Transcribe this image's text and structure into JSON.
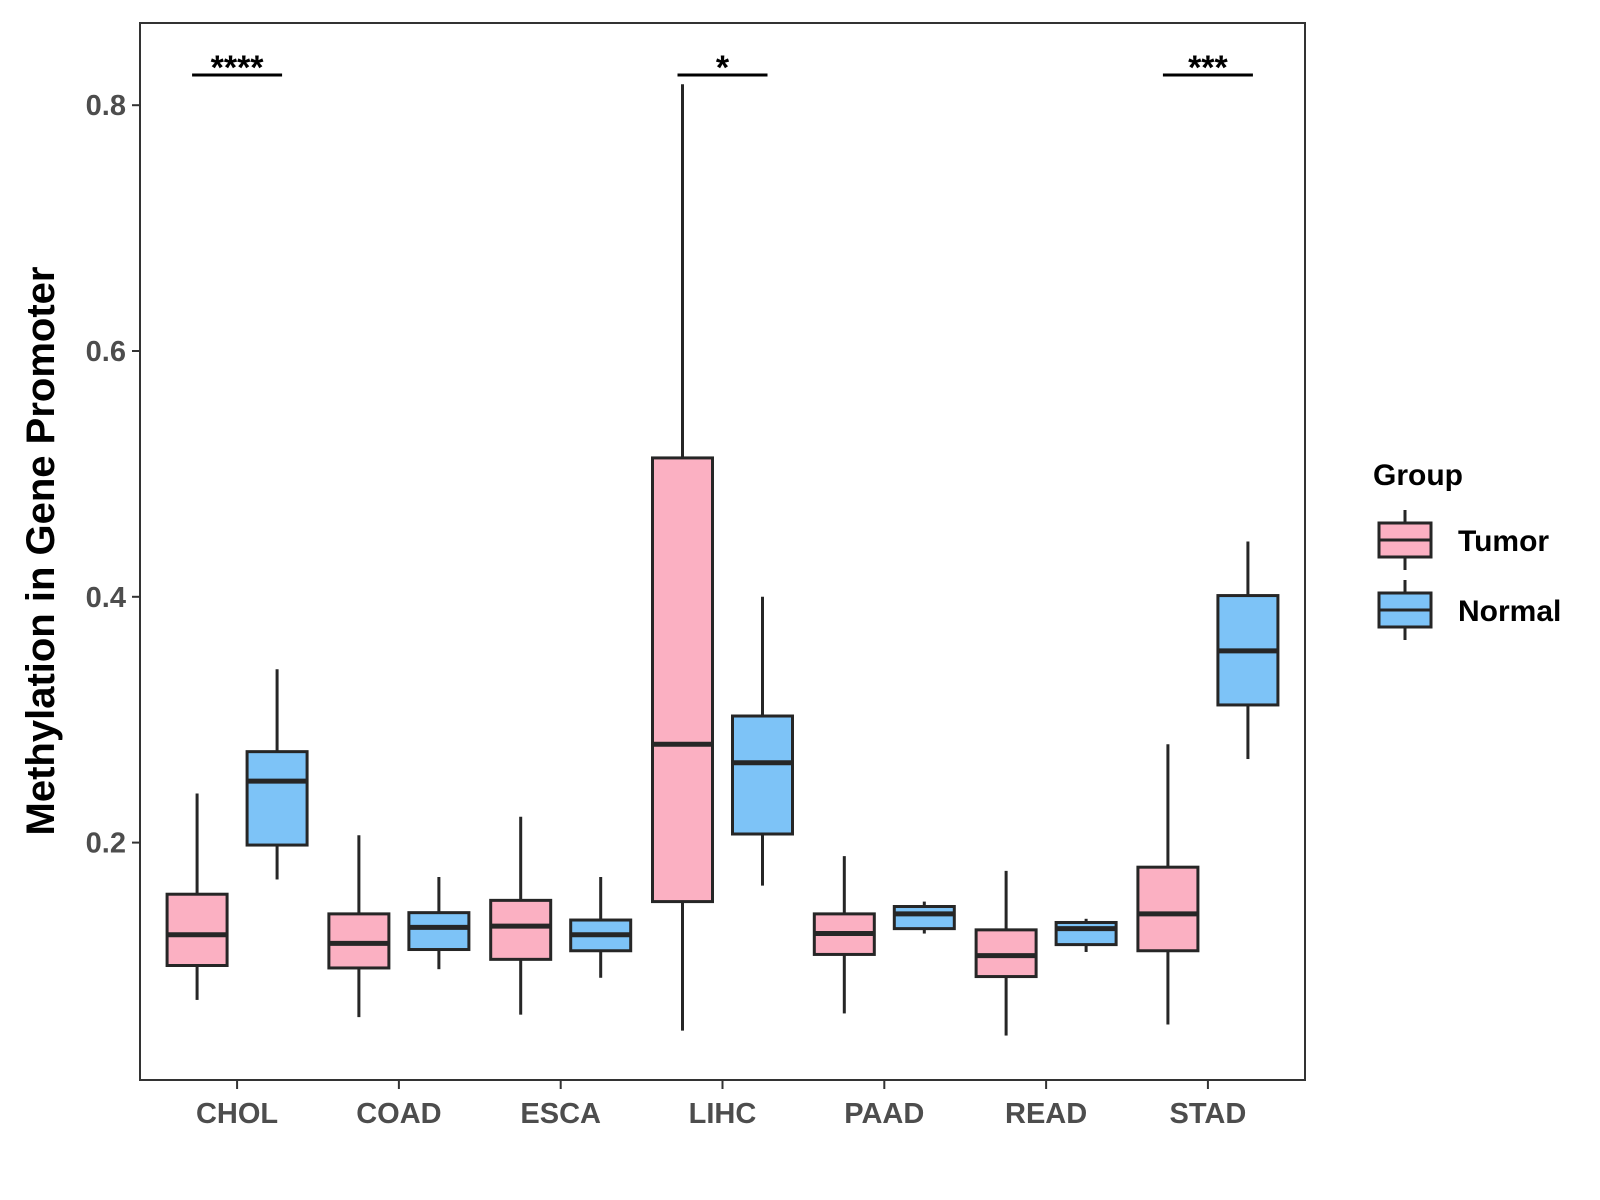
{
  "chart_data": {
    "type": "box",
    "title": "",
    "xlabel": "",
    "ylabel": "Methylation in Gene Promoter",
    "ylim": [
      0.0,
      0.86
    ],
    "yticks": [
      0.2,
      0.4,
      0.6,
      0.8
    ],
    "ytick_labels": [
      "0.2",
      "0.4",
      "0.6",
      "0.8"
    ],
    "categories": [
      "CHOL",
      "COAD",
      "ESCA",
      "LIHC",
      "PAAD",
      "READ",
      "STAD"
    ],
    "legend": {
      "title": "Group",
      "position": "right",
      "entries": [
        "Tumor",
        "Normal"
      ]
    },
    "series": [
      {
        "name": "Tumor",
        "color": "#FBB0C2",
        "boxes": [
          {
            "min": 0.072,
            "q1": 0.1,
            "median": 0.125,
            "q3": 0.158,
            "max": 0.24
          },
          {
            "min": 0.058,
            "q1": 0.098,
            "median": 0.118,
            "q3": 0.142,
            "max": 0.206
          },
          {
            "min": 0.06,
            "q1": 0.105,
            "median": 0.132,
            "q3": 0.153,
            "max": 0.221
          },
          {
            "min": 0.047,
            "q1": 0.152,
            "median": 0.28,
            "q3": 0.513,
            "max": 0.817
          },
          {
            "min": 0.061,
            "q1": 0.109,
            "median": 0.126,
            "q3": 0.142,
            "max": 0.189
          },
          {
            "min": 0.043,
            "q1": 0.091,
            "median": 0.108,
            "q3": 0.129,
            "max": 0.177
          },
          {
            "min": 0.052,
            "q1": 0.112,
            "median": 0.142,
            "q3": 0.18,
            "max": 0.28
          }
        ]
      },
      {
        "name": "Normal",
        "color": "#7DC3F7",
        "boxes": [
          {
            "min": 0.17,
            "q1": 0.198,
            "median": 0.25,
            "q3": 0.274,
            "max": 0.341
          },
          {
            "min": 0.097,
            "q1": 0.113,
            "median": 0.131,
            "q3": 0.143,
            "max": 0.172
          },
          {
            "min": 0.09,
            "q1": 0.112,
            "median": 0.125,
            "q3": 0.137,
            "max": 0.172
          },
          {
            "min": 0.165,
            "q1": 0.207,
            "median": 0.265,
            "q3": 0.303,
            "max": 0.4
          },
          {
            "min": 0.126,
            "q1": 0.13,
            "median": 0.142,
            "q3": 0.148,
            "max": 0.152
          },
          {
            "min": 0.111,
            "q1": 0.117,
            "median": 0.13,
            "q3": 0.135,
            "max": 0.138
          },
          {
            "min": 0.268,
            "q1": 0.312,
            "median": 0.356,
            "q3": 0.401,
            "max": 0.445
          }
        ]
      }
    ],
    "annotations": [
      {
        "category": "CHOL",
        "text": "****"
      },
      {
        "category": "LIHC",
        "text": "*"
      },
      {
        "category": "STAD",
        "text": "***"
      }
    ]
  }
}
